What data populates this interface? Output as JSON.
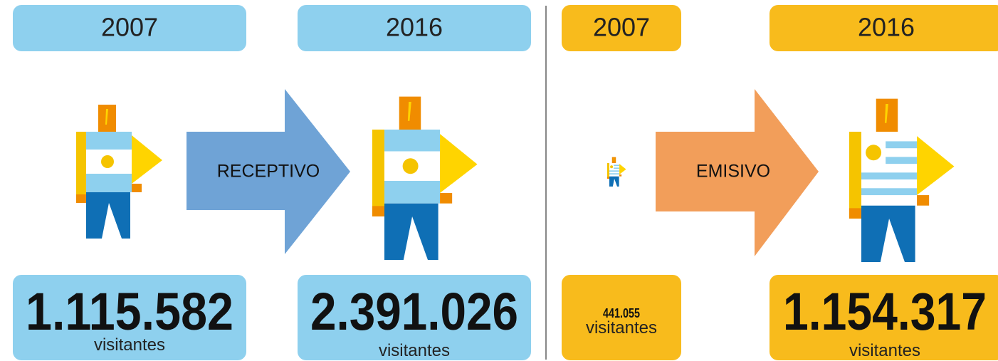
{
  "panels": [
    {
      "label": "RECEPTIVO",
      "items": [
        {
          "year": "2007",
          "value": "1.115.582",
          "unit": "visitantes"
        },
        {
          "year": "2016",
          "value": "2.391.026",
          "unit": "visitantes"
        }
      ]
    },
    {
      "label": "EMISIVO",
      "items": [
        {
          "year": "2007",
          "value": "441.055",
          "unit": "visitantes"
        },
        {
          "year": "2016",
          "value": "1.154.317",
          "unit": "visitantes"
        }
      ]
    }
  ]
}
